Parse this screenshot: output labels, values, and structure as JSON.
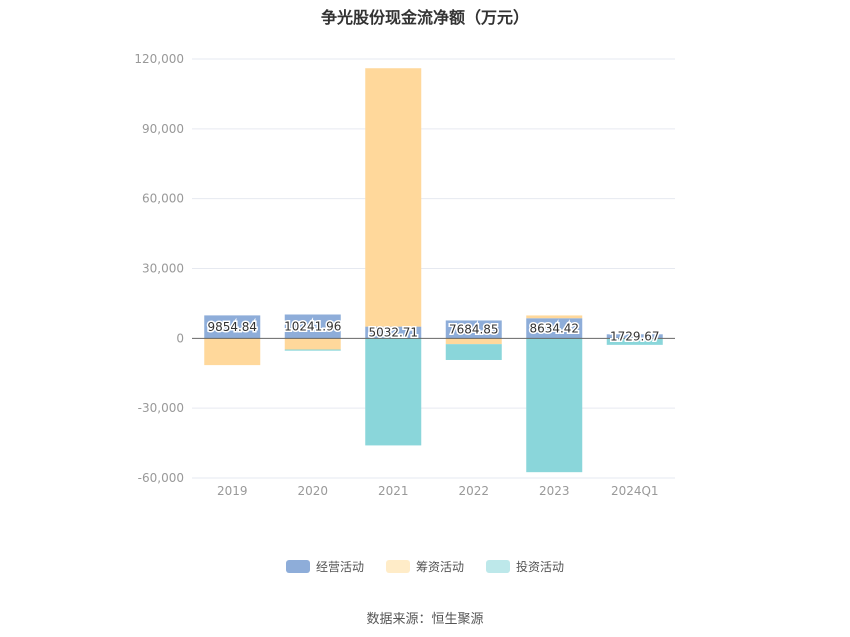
{
  "chart_data": {
    "type": "bar",
    "stacked": true,
    "title": "争光股份现金流净额（万元）",
    "categories": [
      "2019",
      "2020",
      "2021",
      "2022",
      "2023",
      "2024Q1"
    ],
    "ylim": [
      -60000,
      120000
    ],
    "yticks": [
      120000,
      90000,
      60000,
      30000,
      0,
      -30000,
      -60000
    ],
    "ytick_labels": [
      "120,000",
      "90,000",
      "60,000",
      "30,000",
      "0",
      "-30,000",
      "-60,000"
    ],
    "series": [
      {
        "name": "经营活动",
        "color": "#8eadd9",
        "values": [
          9854.84,
          10241.96,
          5032.71,
          7684.85,
          8634.42,
          1729.67
        ],
        "labels": [
          "9854.84",
          "10241.96",
          "5032.71",
          "7684.85",
          "8634.42",
          "1729.67"
        ]
      },
      {
        "name": "筹资活动",
        "color": "#ffd89b",
        "values": [
          -11500,
          -4800,
          111000,
          -2500,
          1200,
          -200
        ]
      },
      {
        "name": "投资活动",
        "color": "#8ad6da",
        "values": [
          0,
          -500,
          -46000,
          -6800,
          -57500,
          -2600
        ]
      }
    ],
    "grid": true,
    "legend_position": "bottom"
  },
  "legend_colors": [
    "#8eadd9",
    "#ffecc8",
    "#bde8ea"
  ],
  "source": "数据来源：恒生聚源"
}
